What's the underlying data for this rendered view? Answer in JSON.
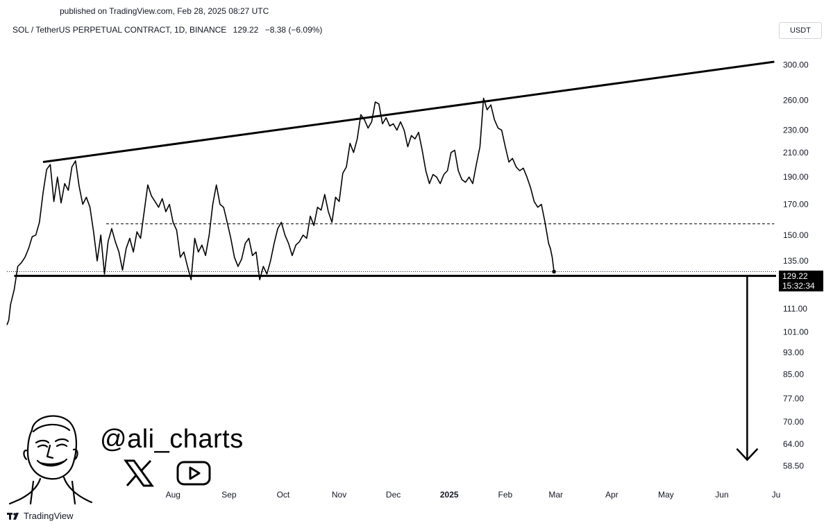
{
  "published": "published on TradingView.com, Feb 28, 2025 08:27 UTC",
  "header": {
    "symbol": "SOL / TetherUS PERPETUAL CONTRACT, 1D, BINANCE",
    "last": "129.22",
    "change": "−8.38 (−6.09%)"
  },
  "currency_button": "USDT",
  "price_tag": {
    "price": "129.22",
    "countdown": "15:32:34"
  },
  "watermark": {
    "handle": "@ali_charts",
    "icons": [
      "x-logo-icon",
      "youtube-icon"
    ]
  },
  "footer": {
    "brand": "TradingView"
  },
  "chart_data": {
    "type": "line",
    "y_scale": "log",
    "ylim": [
      54,
      330
    ],
    "y_ticks": [
      "300.00",
      "260.00",
      "230.00",
      "210.00",
      "190.00",
      "170.00",
      "150.00",
      "135.00",
      "111.00",
      "101.00",
      "93.00",
      "85.00",
      "77.00",
      "70.00",
      "64.00",
      "58.50"
    ],
    "x_ticks": [
      {
        "label": "Aug",
        "date": "2024-08-01",
        "bold": false
      },
      {
        "label": "Sep",
        "date": "2024-09-01",
        "bold": false
      },
      {
        "label": "Oct",
        "date": "2024-10-01",
        "bold": false
      },
      {
        "label": "Nov",
        "date": "2024-11-01",
        "bold": false
      },
      {
        "label": "Dec",
        "date": "2024-12-01",
        "bold": false
      },
      {
        "label": "2025",
        "date": "2025-01-01",
        "bold": true
      },
      {
        "label": "Feb",
        "date": "2025-02-01",
        "bold": false
      },
      {
        "label": "Mar",
        "date": "2025-03-01",
        "bold": false
      },
      {
        "label": "Apr",
        "date": "2025-04-01",
        "bold": false
      },
      {
        "label": "May",
        "date": "2025-05-01",
        "bold": false
      },
      {
        "label": "Jun",
        "date": "2025-06-01",
        "bold": false
      },
      {
        "label": "Ju",
        "date": "2025-07-01",
        "bold": false
      }
    ],
    "xlim": [
      "2024-05-01",
      "2025-07-01"
    ],
    "series": [
      {
        "points": [
          [
            "2024-05-01",
            104
          ],
          [
            "2024-05-02",
            106
          ],
          [
            "2024-05-03",
            113
          ],
          [
            "2024-05-05",
            120
          ],
          [
            "2024-05-07",
            132
          ],
          [
            "2024-05-09",
            134
          ],
          [
            "2024-05-11",
            137
          ],
          [
            "2024-05-13",
            142
          ],
          [
            "2024-05-15",
            149
          ],
          [
            "2024-05-17",
            150
          ],
          [
            "2024-05-19",
            158
          ],
          [
            "2024-05-21",
            178
          ],
          [
            "2024-05-23",
            196
          ],
          [
            "2024-05-25",
            200
          ],
          [
            "2024-05-27",
            172
          ],
          [
            "2024-05-29",
            190
          ],
          [
            "2024-05-31",
            171
          ],
          [
            "2024-06-02",
            185
          ],
          [
            "2024-06-04",
            180
          ],
          [
            "2024-06-06",
            198
          ],
          [
            "2024-06-08",
            203
          ],
          [
            "2024-06-10",
            183
          ],
          [
            "2024-06-12",
            170
          ],
          [
            "2024-06-14",
            175
          ],
          [
            "2024-06-16",
            168
          ],
          [
            "2024-06-18",
            152
          ],
          [
            "2024-06-20",
            135
          ],
          [
            "2024-06-22",
            150
          ],
          [
            "2024-06-24",
            128
          ],
          [
            "2024-06-26",
            146
          ],
          [
            "2024-06-28",
            154
          ],
          [
            "2024-06-30",
            146
          ],
          [
            "2024-07-02",
            140
          ],
          [
            "2024-07-04",
            130
          ],
          [
            "2024-07-06",
            142
          ],
          [
            "2024-07-08",
            148
          ],
          [
            "2024-07-10",
            140
          ],
          [
            "2024-07-12",
            152
          ],
          [
            "2024-07-14",
            148
          ],
          [
            "2024-07-16",
            165
          ],
          [
            "2024-07-18",
            184
          ],
          [
            "2024-07-20",
            176
          ],
          [
            "2024-07-22",
            172
          ],
          [
            "2024-07-24",
            168
          ],
          [
            "2024-07-26",
            174
          ],
          [
            "2024-07-28",
            165
          ],
          [
            "2024-07-30",
            170
          ],
          [
            "2024-08-01",
            158
          ],
          [
            "2024-08-03",
            153
          ],
          [
            "2024-08-05",
            137
          ],
          [
            "2024-08-07",
            140
          ],
          [
            "2024-08-09",
            132
          ],
          [
            "2024-08-11",
            125
          ],
          [
            "2024-08-13",
            148
          ],
          [
            "2024-08-15",
            140
          ],
          [
            "2024-08-17",
            144
          ],
          [
            "2024-08-19",
            138
          ],
          [
            "2024-08-21",
            150
          ],
          [
            "2024-08-23",
            170
          ],
          [
            "2024-08-25",
            184
          ],
          [
            "2024-08-27",
            170
          ],
          [
            "2024-08-29",
            168
          ],
          [
            "2024-08-31",
            158
          ],
          [
            "2024-09-02",
            148
          ],
          [
            "2024-09-04",
            137
          ],
          [
            "2024-09-06",
            132
          ],
          [
            "2024-09-08",
            136
          ],
          [
            "2024-09-10",
            145
          ],
          [
            "2024-09-12",
            148
          ],
          [
            "2024-09-14",
            138
          ],
          [
            "2024-09-16",
            140
          ],
          [
            "2024-09-18",
            125
          ],
          [
            "2024-09-20",
            132
          ],
          [
            "2024-09-22",
            128
          ],
          [
            "2024-09-24",
            135
          ],
          [
            "2024-09-26",
            145
          ],
          [
            "2024-09-28",
            154
          ],
          [
            "2024-09-30",
            158
          ],
          [
            "2024-10-02",
            150
          ],
          [
            "2024-10-04",
            145
          ],
          [
            "2024-10-06",
            138
          ],
          [
            "2024-10-08",
            144
          ],
          [
            "2024-10-10",
            146
          ],
          [
            "2024-10-12",
            150
          ],
          [
            "2024-10-14",
            148
          ],
          [
            "2024-10-16",
            162
          ],
          [
            "2024-10-18",
            156
          ],
          [
            "2024-10-20",
            168
          ],
          [
            "2024-10-22",
            166
          ],
          [
            "2024-10-24",
            177
          ],
          [
            "2024-10-26",
            165
          ],
          [
            "2024-10-28",
            158
          ],
          [
            "2024-10-30",
            175
          ],
          [
            "2024-11-01",
            172
          ],
          [
            "2024-11-03",
            193
          ],
          [
            "2024-11-05",
            198
          ],
          [
            "2024-11-07",
            218
          ],
          [
            "2024-11-09",
            210
          ],
          [
            "2024-11-11",
            222
          ],
          [
            "2024-11-13",
            245
          ],
          [
            "2024-11-15",
            240
          ],
          [
            "2024-11-17",
            232
          ],
          [
            "2024-11-19",
            238
          ],
          [
            "2024-11-21",
            258
          ],
          [
            "2024-11-23",
            256
          ],
          [
            "2024-11-25",
            236
          ],
          [
            "2024-11-27",
            242
          ],
          [
            "2024-11-29",
            234
          ],
          [
            "2024-12-01",
            236
          ],
          [
            "2024-12-03",
            230
          ],
          [
            "2024-12-05",
            238
          ],
          [
            "2024-12-07",
            230
          ],
          [
            "2024-12-09",
            215
          ],
          [
            "2024-12-11",
            225
          ],
          [
            "2024-12-13",
            222
          ],
          [
            "2024-12-15",
            228
          ],
          [
            "2024-12-17",
            212
          ],
          [
            "2024-12-19",
            195
          ],
          [
            "2024-12-21",
            185
          ],
          [
            "2024-12-23",
            192
          ],
          [
            "2024-12-25",
            190
          ],
          [
            "2024-12-27",
            185
          ],
          [
            "2024-12-29",
            192
          ],
          [
            "2024-12-31",
            195
          ],
          [
            "2025-01-02",
            210
          ],
          [
            "2025-01-04",
            212
          ],
          [
            "2025-01-06",
            195
          ],
          [
            "2025-01-08",
            188
          ],
          [
            "2025-01-10",
            186
          ],
          [
            "2025-01-12",
            190
          ],
          [
            "2025-01-14",
            185
          ],
          [
            "2025-01-16",
            200
          ],
          [
            "2025-01-18",
            215
          ],
          [
            "2025-01-20",
            262
          ],
          [
            "2025-01-22",
            250
          ],
          [
            "2025-01-24",
            255
          ],
          [
            "2025-01-26",
            240
          ],
          [
            "2025-01-28",
            232
          ],
          [
            "2025-01-30",
            230
          ],
          [
            "2025-02-01",
            215
          ],
          [
            "2025-02-03",
            202
          ],
          [
            "2025-02-05",
            205
          ],
          [
            "2025-02-07",
            198
          ],
          [
            "2025-02-09",
            195
          ],
          [
            "2025-02-11",
            197
          ],
          [
            "2025-02-13",
            190
          ],
          [
            "2025-02-15",
            182
          ],
          [
            "2025-02-17",
            172
          ],
          [
            "2025-02-19",
            168
          ],
          [
            "2025-02-21",
            170
          ],
          [
            "2025-02-23",
            158
          ],
          [
            "2025-02-25",
            145
          ],
          [
            "2025-02-26",
            142
          ],
          [
            "2025-02-27",
            137
          ],
          [
            "2025-02-28",
            129.22
          ]
        ]
      }
    ],
    "annotations": {
      "resistance_line": [
        [
          "2024-05-21",
          202
        ],
        [
          "2025-06-30",
          304
        ]
      ],
      "support_line": [
        [
          "2024-05-05",
          127
        ],
        [
          "2025-07-01",
          127
        ]
      ],
      "dashed_line": [
        [
          "2024-06-25",
          157
        ],
        [
          "2025-06-30",
          157
        ]
      ],
      "current_price_dotted": [
        [
          "2024-05-01",
          129.22
        ],
        [
          "2025-07-01",
          129.22
        ]
      ],
      "target_arrow": {
        "date": "2025-06-15",
        "from": 127,
        "to": 60
      }
    },
    "grid": false,
    "legend": "none"
  }
}
